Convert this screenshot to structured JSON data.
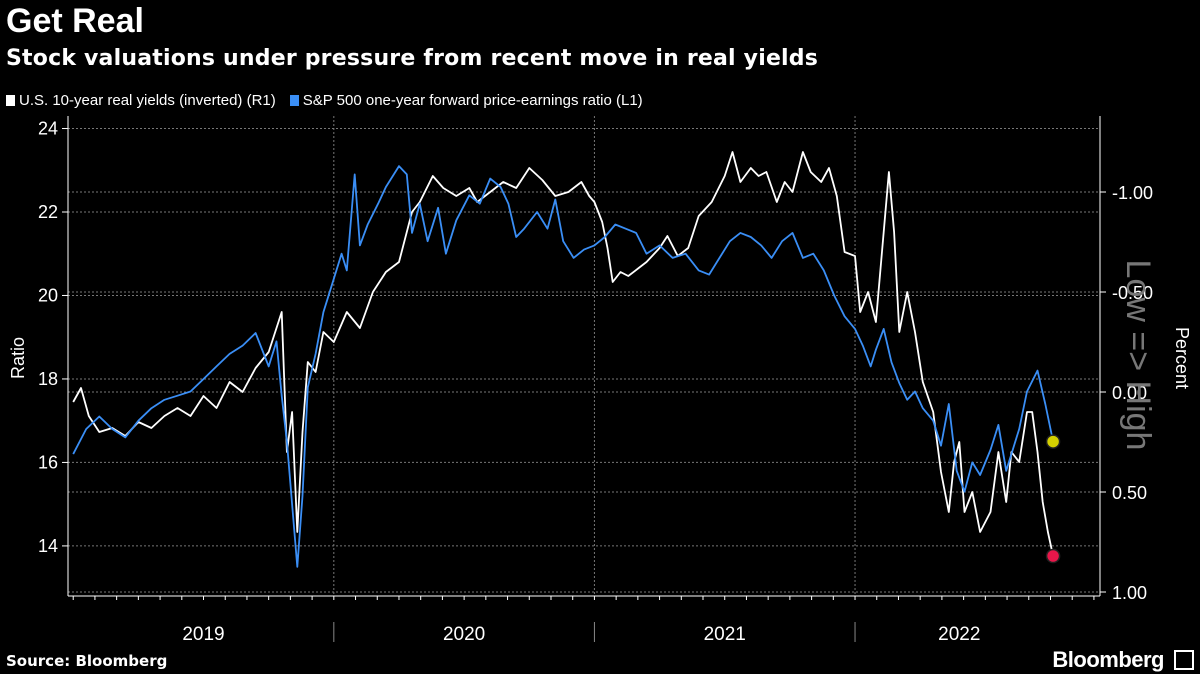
{
  "title": "Get Real",
  "subtitle": "Stock valuations under pressure from recent move in real yields",
  "source": "Source: Bloomberg",
  "brand": "Bloomberg",
  "chart_data": {
    "type": "line",
    "x_labels": [
      "2019",
      "2020",
      "2021",
      "2022"
    ],
    "left_axis": {
      "label": "Ratio",
      "ticks": [
        "14",
        "16",
        "18",
        "20",
        "22",
        "24"
      ],
      "range": [
        12.8,
        24.3
      ]
    },
    "right_axis": {
      "label": "Percent",
      "ticks": [
        "-1.00",
        "-0.50",
        "0.00",
        "0.50",
        "1.00"
      ],
      "range": [
        -1.38,
        1.02
      ],
      "inverted": true,
      "annotation": "Low => High"
    },
    "series": [
      {
        "name": "U.S. 10-year real yields (inverted) (R1)",
        "axis": "right",
        "color": "#ffffff",
        "values": [
          [
            2019.0,
            0.05
          ],
          [
            2019.03,
            -0.02
          ],
          [
            2019.06,
            0.12
          ],
          [
            2019.1,
            0.2
          ],
          [
            2019.15,
            0.18
          ],
          [
            2019.2,
            0.22
          ],
          [
            2019.25,
            0.15
          ],
          [
            2019.3,
            0.18
          ],
          [
            2019.35,
            0.12
          ],
          [
            2019.4,
            0.08
          ],
          [
            2019.45,
            0.12
          ],
          [
            2019.5,
            0.02
          ],
          [
            2019.55,
            0.08
          ],
          [
            2019.6,
            -0.05
          ],
          [
            2019.65,
            0.0
          ],
          [
            2019.7,
            -0.12
          ],
          [
            2019.75,
            -0.2
          ],
          [
            2019.8,
            -0.4
          ],
          [
            2019.82,
            0.3
          ],
          [
            2019.84,
            0.1
          ],
          [
            2019.86,
            0.7
          ],
          [
            2019.88,
            0.2
          ],
          [
            2019.9,
            -0.15
          ],
          [
            2019.93,
            -0.1
          ],
          [
            2019.96,
            -0.3
          ],
          [
            2020.0,
            -0.25
          ],
          [
            2020.05,
            -0.4
          ],
          [
            2020.1,
            -0.32
          ],
          [
            2020.15,
            -0.5
          ],
          [
            2020.2,
            -0.6
          ],
          [
            2020.25,
            -0.65
          ],
          [
            2020.3,
            -0.9
          ],
          [
            2020.33,
            -0.95
          ],
          [
            2020.38,
            -1.08
          ],
          [
            2020.42,
            -1.02
          ],
          [
            2020.47,
            -0.98
          ],
          [
            2020.52,
            -1.02
          ],
          [
            2020.55,
            -0.95
          ],
          [
            2020.6,
            -1.0
          ],
          [
            2020.65,
            -1.05
          ],
          [
            2020.7,
            -1.02
          ],
          [
            2020.75,
            -1.12
          ],
          [
            2020.8,
            -1.06
          ],
          [
            2020.85,
            -0.98
          ],
          [
            2020.9,
            -1.0
          ],
          [
            2020.95,
            -1.05
          ],
          [
            2020.98,
            -0.98
          ],
          [
            2021.0,
            -0.95
          ],
          [
            2021.03,
            -0.85
          ],
          [
            2021.05,
            -0.72
          ],
          [
            2021.07,
            -0.55
          ],
          [
            2021.1,
            -0.6
          ],
          [
            2021.13,
            -0.58
          ],
          [
            2021.17,
            -0.62
          ],
          [
            2021.2,
            -0.65
          ],
          [
            2021.25,
            -0.72
          ],
          [
            2021.28,
            -0.78
          ],
          [
            2021.32,
            -0.68
          ],
          [
            2021.36,
            -0.72
          ],
          [
            2021.4,
            -0.88
          ],
          [
            2021.45,
            -0.95
          ],
          [
            2021.5,
            -1.08
          ],
          [
            2021.53,
            -1.2
          ],
          [
            2021.56,
            -1.05
          ],
          [
            2021.6,
            -1.12
          ],
          [
            2021.63,
            -1.08
          ],
          [
            2021.66,
            -1.1
          ],
          [
            2021.7,
            -0.95
          ],
          [
            2021.73,
            -1.05
          ],
          [
            2021.76,
            -1.0
          ],
          [
            2021.8,
            -1.2
          ],
          [
            2021.83,
            -1.1
          ],
          [
            2021.87,
            -1.05
          ],
          [
            2021.9,
            -1.12
          ],
          [
            2021.93,
            -0.98
          ],
          [
            2021.96,
            -0.7
          ],
          [
            2022.0,
            -0.68
          ],
          [
            2022.02,
            -0.4
          ],
          [
            2022.05,
            -0.5
          ],
          [
            2022.08,
            -0.35
          ],
          [
            2022.11,
            -0.8
          ],
          [
            2022.13,
            -1.1
          ],
          [
            2022.15,
            -0.8
          ],
          [
            2022.17,
            -0.3
          ],
          [
            2022.2,
            -0.5
          ],
          [
            2022.23,
            -0.3
          ],
          [
            2022.26,
            -0.05
          ],
          [
            2022.3,
            0.1
          ],
          [
            2022.33,
            0.4
          ],
          [
            2022.36,
            0.6
          ],
          [
            2022.38,
            0.35
          ],
          [
            2022.4,
            0.25
          ],
          [
            2022.42,
            0.6
          ],
          [
            2022.45,
            0.5
          ],
          [
            2022.48,
            0.7
          ],
          [
            2022.52,
            0.6
          ],
          [
            2022.55,
            0.3
          ],
          [
            2022.58,
            0.55
          ],
          [
            2022.6,
            0.3
          ],
          [
            2022.63,
            0.35
          ],
          [
            2022.66,
            0.1
          ],
          [
            2022.68,
            0.1
          ],
          [
            2022.7,
            0.3
          ],
          [
            2022.72,
            0.55
          ],
          [
            2022.74,
            0.7
          ],
          [
            2022.76,
            0.82
          ]
        ]
      },
      {
        "name": "S&P 500 one-year forward price-earnings ratio (L1)",
        "axis": "left",
        "color": "#3a8ef5",
        "values": [
          [
            2019.0,
            16.2
          ],
          [
            2019.05,
            16.8
          ],
          [
            2019.1,
            17.1
          ],
          [
            2019.15,
            16.8
          ],
          [
            2019.2,
            16.6
          ],
          [
            2019.25,
            17.0
          ],
          [
            2019.3,
            17.3
          ],
          [
            2019.35,
            17.5
          ],
          [
            2019.4,
            17.6
          ],
          [
            2019.45,
            17.7
          ],
          [
            2019.5,
            18.0
          ],
          [
            2019.55,
            18.3
          ],
          [
            2019.6,
            18.6
          ],
          [
            2019.65,
            18.8
          ],
          [
            2019.7,
            19.1
          ],
          [
            2019.75,
            18.3
          ],
          [
            2019.78,
            18.9
          ],
          [
            2019.8,
            17.6
          ],
          [
            2019.82,
            16.5
          ],
          [
            2019.84,
            15.0
          ],
          [
            2019.86,
            13.5
          ],
          [
            2019.88,
            15.2
          ],
          [
            2019.9,
            17.8
          ],
          [
            2019.93,
            18.6
          ],
          [
            2019.96,
            19.6
          ],
          [
            2020.0,
            20.4
          ],
          [
            2020.03,
            21.0
          ],
          [
            2020.05,
            20.6
          ],
          [
            2020.08,
            22.9
          ],
          [
            2020.1,
            21.2
          ],
          [
            2020.13,
            21.7
          ],
          [
            2020.17,
            22.2
          ],
          [
            2020.2,
            22.6
          ],
          [
            2020.25,
            23.1
          ],
          [
            2020.28,
            22.9
          ],
          [
            2020.3,
            21.5
          ],
          [
            2020.33,
            22.2
          ],
          [
            2020.36,
            21.3
          ],
          [
            2020.4,
            22.1
          ],
          [
            2020.43,
            21.0
          ],
          [
            2020.47,
            21.8
          ],
          [
            2020.52,
            22.4
          ],
          [
            2020.56,
            22.2
          ],
          [
            2020.6,
            22.8
          ],
          [
            2020.64,
            22.6
          ],
          [
            2020.67,
            22.2
          ],
          [
            2020.7,
            21.4
          ],
          [
            2020.73,
            21.6
          ],
          [
            2020.78,
            22.0
          ],
          [
            2020.82,
            21.6
          ],
          [
            2020.85,
            22.3
          ],
          [
            2020.88,
            21.3
          ],
          [
            2020.92,
            20.9
          ],
          [
            2020.96,
            21.1
          ],
          [
            2021.0,
            21.2
          ],
          [
            2021.04,
            21.4
          ],
          [
            2021.08,
            21.7
          ],
          [
            2021.12,
            21.6
          ],
          [
            2021.16,
            21.5
          ],
          [
            2021.2,
            21.0
          ],
          [
            2021.25,
            21.2
          ],
          [
            2021.3,
            20.9
          ],
          [
            2021.35,
            21.0
          ],
          [
            2021.4,
            20.6
          ],
          [
            2021.44,
            20.5
          ],
          [
            2021.48,
            20.9
          ],
          [
            2021.52,
            21.3
          ],
          [
            2021.56,
            21.5
          ],
          [
            2021.6,
            21.4
          ],
          [
            2021.64,
            21.2
          ],
          [
            2021.68,
            20.9
          ],
          [
            2021.72,
            21.3
          ],
          [
            2021.76,
            21.5
          ],
          [
            2021.8,
            20.9
          ],
          [
            2021.84,
            21.0
          ],
          [
            2021.88,
            20.6
          ],
          [
            2021.92,
            20.0
          ],
          [
            2021.96,
            19.5
          ],
          [
            2022.0,
            19.2
          ],
          [
            2022.03,
            18.8
          ],
          [
            2022.06,
            18.3
          ],
          [
            2022.08,
            18.7
          ],
          [
            2022.11,
            19.2
          ],
          [
            2022.14,
            18.4
          ],
          [
            2022.17,
            17.9
          ],
          [
            2022.2,
            17.5
          ],
          [
            2022.23,
            17.7
          ],
          [
            2022.26,
            17.3
          ],
          [
            2022.3,
            17.0
          ],
          [
            2022.33,
            16.4
          ],
          [
            2022.36,
            17.4
          ],
          [
            2022.39,
            15.8
          ],
          [
            2022.42,
            15.3
          ],
          [
            2022.45,
            16.0
          ],
          [
            2022.48,
            15.7
          ],
          [
            2022.52,
            16.3
          ],
          [
            2022.55,
            16.9
          ],
          [
            2022.58,
            15.8
          ],
          [
            2022.6,
            16.2
          ],
          [
            2022.63,
            16.8
          ],
          [
            2022.66,
            17.7
          ],
          [
            2022.7,
            18.2
          ],
          [
            2022.73,
            17.4
          ],
          [
            2022.76,
            16.5
          ]
        ]
      }
    ],
    "end_markers": [
      {
        "series": 0,
        "color": "#e8174a"
      },
      {
        "series": 1,
        "color": "#d4d000"
      }
    ]
  }
}
